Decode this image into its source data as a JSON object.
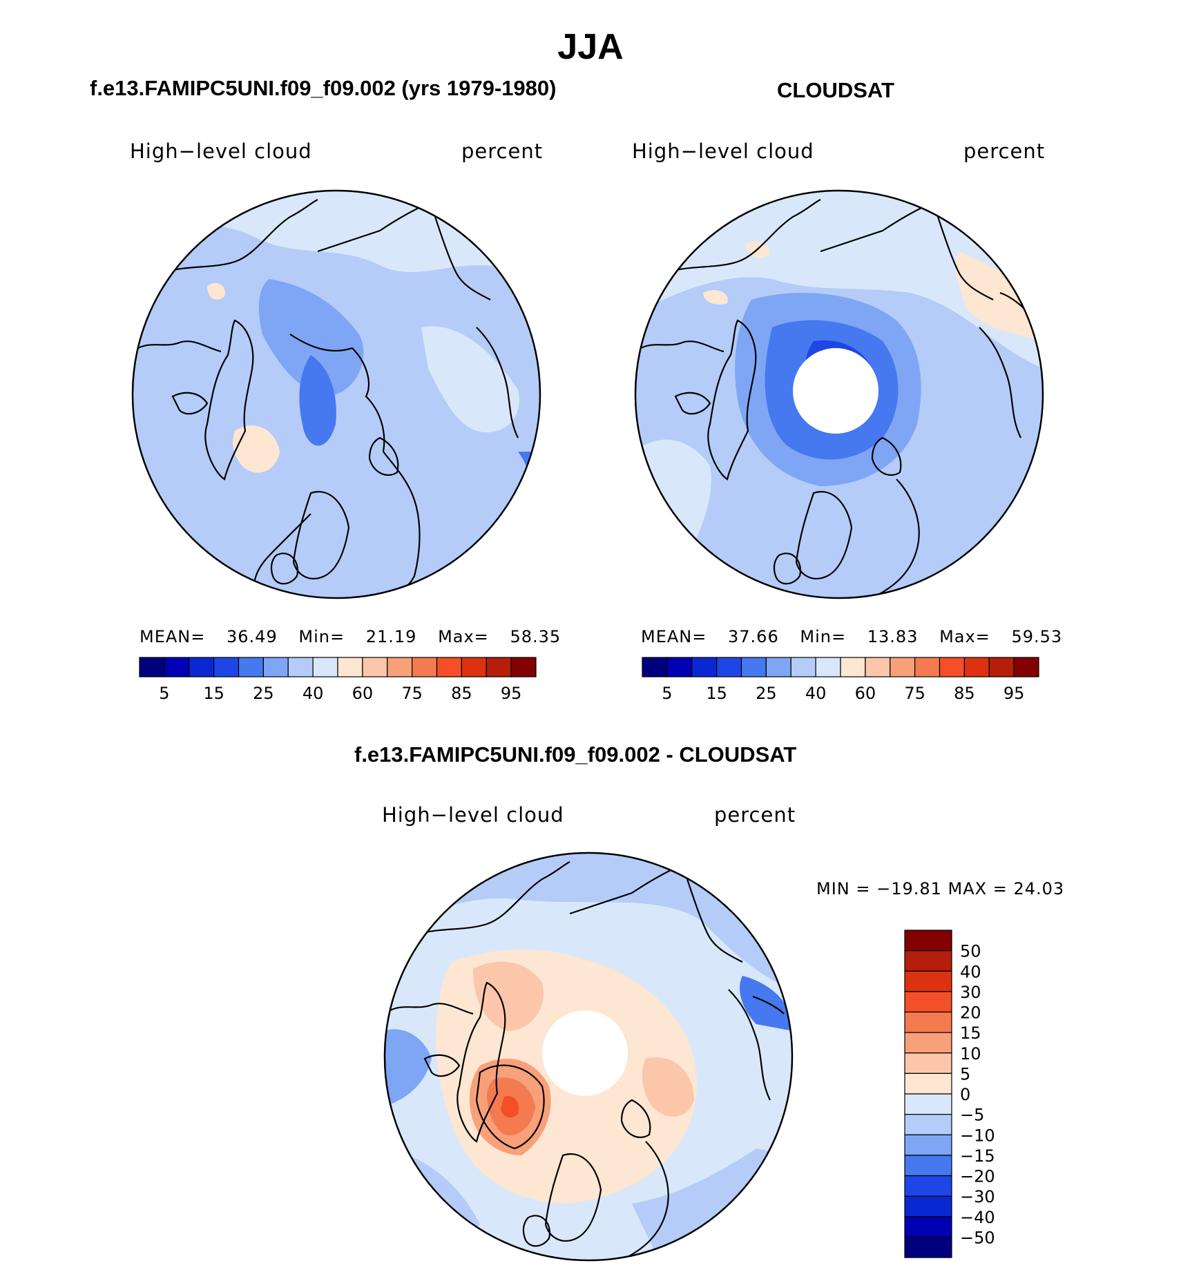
{
  "figure": {
    "title": "JJA"
  },
  "panels": [
    {
      "title": "f.e13.FAMIPC5UNI.f09_f09.002 (yrs 1979-1980)",
      "left_label": "High−level cloud",
      "right_label": "percent",
      "stats": {
        "mean_label": "MEAN=",
        "mean": "36.49",
        "min_label": "Min=",
        "min": "21.19",
        "max_label": "Max=",
        "max": "58.35"
      }
    },
    {
      "title": "CLOUDSAT",
      "left_label": "High−level cloud",
      "right_label": "percent",
      "stats": {
        "mean_label": "MEAN=",
        "mean": "37.66",
        "min_label": "Min=",
        "min": "13.83",
        "max_label": "Max=",
        "max": "59.53"
      }
    },
    {
      "title": "f.e13.FAMIPC5UNI.f09_f09.002 - CLOUDSAT",
      "left_label": "High−level cloud",
      "right_label": "percent",
      "minmax": "MIN = −19.81 MAX =   24.03"
    }
  ],
  "abs_colorbar": {
    "colors": [
      "#00007f",
      "#0000b4",
      "#0a28d2",
      "#1e46e6",
      "#4678f0",
      "#7ea6f5",
      "#b4ccf7",
      "#d8e8fa",
      "#fde6d2",
      "#fbc6aa",
      "#f7a07a",
      "#f47a50",
      "#f44f28",
      "#dc3210",
      "#b41e0a",
      "#820000"
    ],
    "tick_labels": [
      "5",
      "15",
      "25",
      "40",
      "60",
      "75",
      "85",
      "95"
    ]
  },
  "diff_colorbar": {
    "colors": [
      "#820000",
      "#b41e0a",
      "#dc3210",
      "#f44f28",
      "#f47a50",
      "#f7a07a",
      "#fbc6aa",
      "#fde6d2",
      "#d8e8fa",
      "#b4ccf7",
      "#7ea6f5",
      "#4678f0",
      "#1e46e6",
      "#0a28d2",
      "#0000b4",
      "#00007f"
    ],
    "tick_labels": [
      "50",
      "40",
      "30",
      "20",
      "15",
      "10",
      "5",
      "0",
      "−5",
      "−10",
      "−15",
      "−20",
      "−30",
      "−40",
      "−50"
    ]
  },
  "map_colors": {
    "ocean_base_abs": "#b4ccf7",
    "light_blue": "#d8e8fa",
    "mid_blue": "#7ea6f5",
    "dark_blue": "#4678f0",
    "pale_orange": "#fde6d2",
    "orange": "#fbc6aa",
    "mid_orange": "#f7a07a",
    "deep_orange": "#f44f28",
    "coast": "#000000"
  }
}
